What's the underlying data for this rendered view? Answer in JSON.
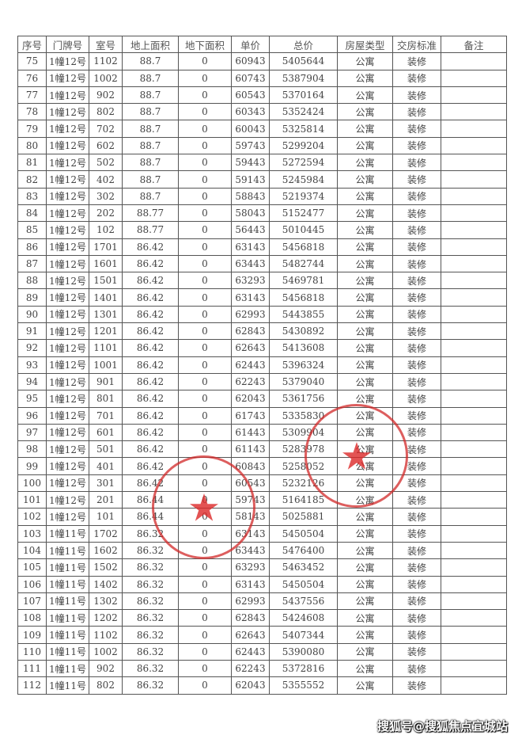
{
  "headers": [
    "序号",
    "门牌号",
    "室号",
    "地上面积",
    "地下面积",
    "单价",
    "总价",
    "房屋类型",
    "交房标准",
    "备注"
  ],
  "rows": [
    [
      "75",
      "1幢12号",
      "1102",
      "88.7",
      "0",
      "60943",
      "5405644",
      "公寓",
      "装修",
      ""
    ],
    [
      "76",
      "1幢12号",
      "1002",
      "88.7",
      "0",
      "60743",
      "5387904",
      "公寓",
      "装修",
      ""
    ],
    [
      "77",
      "1幢12号",
      "902",
      "88.7",
      "0",
      "60543",
      "5370164",
      "公寓",
      "装修",
      ""
    ],
    [
      "78",
      "1幢12号",
      "802",
      "88.7",
      "0",
      "60343",
      "5352424",
      "公寓",
      "装修",
      ""
    ],
    [
      "79",
      "1幢12号",
      "702",
      "88.7",
      "0",
      "60043",
      "5325814",
      "公寓",
      "装修",
      ""
    ],
    [
      "80",
      "1幢12号",
      "602",
      "88.7",
      "0",
      "59743",
      "5299204",
      "公寓",
      "装修",
      ""
    ],
    [
      "81",
      "1幢12号",
      "502",
      "88.7",
      "0",
      "59443",
      "5272594",
      "公寓",
      "装修",
      ""
    ],
    [
      "82",
      "1幢12号",
      "402",
      "88.7",
      "0",
      "59143",
      "5245984",
      "公寓",
      "装修",
      ""
    ],
    [
      "83",
      "1幢12号",
      "302",
      "88.7",
      "0",
      "58843",
      "5219374",
      "公寓",
      "装修",
      ""
    ],
    [
      "84",
      "1幢12号",
      "202",
      "88.77",
      "0",
      "58043",
      "5152477",
      "公寓",
      "装修",
      ""
    ],
    [
      "85",
      "1幢12号",
      "102",
      "88.77",
      "0",
      "56443",
      "5010445",
      "公寓",
      "装修",
      ""
    ],
    [
      "86",
      "1幢12号",
      "1701",
      "86.42",
      "0",
      "63143",
      "5456818",
      "公寓",
      "装修",
      ""
    ],
    [
      "87",
      "1幢12号",
      "1601",
      "86.42",
      "0",
      "63443",
      "5482744",
      "公寓",
      "装修",
      ""
    ],
    [
      "88",
      "1幢12号",
      "1501",
      "86.42",
      "0",
      "63293",
      "5469781",
      "公寓",
      "装修",
      ""
    ],
    [
      "89",
      "1幢12号",
      "1401",
      "86.42",
      "0",
      "63143",
      "5456818",
      "公寓",
      "装修",
      ""
    ],
    [
      "90",
      "1幢12号",
      "1301",
      "86.42",
      "0",
      "62993",
      "5443855",
      "公寓",
      "装修",
      ""
    ],
    [
      "91",
      "1幢12号",
      "1201",
      "86.42",
      "0",
      "62843",
      "5430892",
      "公寓",
      "装修",
      ""
    ],
    [
      "92",
      "1幢12号",
      "1101",
      "86.42",
      "0",
      "62643",
      "5413608",
      "公寓",
      "装修",
      ""
    ],
    [
      "93",
      "1幢12号",
      "1001",
      "86.42",
      "0",
      "62443",
      "5396324",
      "公寓",
      "装修",
      ""
    ],
    [
      "94",
      "1幢12号",
      "901",
      "86.42",
      "0",
      "62243",
      "5379040",
      "公寓",
      "装修",
      ""
    ],
    [
      "95",
      "1幢12号",
      "801",
      "86.42",
      "0",
      "62043",
      "5361756",
      "公寓",
      "装修",
      ""
    ],
    [
      "96",
      "1幢12号",
      "701",
      "86.42",
      "0",
      "61743",
      "5335830",
      "公寓",
      "装修",
      ""
    ],
    [
      "97",
      "1幢12号",
      "601",
      "86.42",
      "0",
      "61443",
      "5309904",
      "公寓",
      "装修",
      ""
    ],
    [
      "98",
      "1幢12号",
      "501",
      "86.42",
      "0",
      "61143",
      "5283978",
      "公寓",
      "装修",
      ""
    ],
    [
      "99",
      "1幢12号",
      "401",
      "86.42",
      "0",
      "60843",
      "5258052",
      "公寓",
      "装修",
      ""
    ],
    [
      "100",
      "1幢12号",
      "301",
      "86.42",
      "0",
      "60543",
      "5232126",
      "公寓",
      "装修",
      ""
    ],
    [
      "101",
      "1幢12号",
      "201",
      "86.44",
      "0",
      "59743",
      "5164185",
      "公寓",
      "装修",
      ""
    ],
    [
      "102",
      "1幢12号",
      "101",
      "86.44",
      "0",
      "58143",
      "5025881",
      "公寓",
      "装修",
      ""
    ],
    [
      "103",
      "1幢11号",
      "1702",
      "86.32",
      "0",
      "63143",
      "5450504",
      "公寓",
      "装修",
      ""
    ],
    [
      "104",
      "1幢11号",
      "1602",
      "86.32",
      "0",
      "63443",
      "5476400",
      "公寓",
      "装修",
      ""
    ],
    [
      "105",
      "1幢11号",
      "1502",
      "86.32",
      "0",
      "63293",
      "5463452",
      "公寓",
      "装修",
      ""
    ],
    [
      "106",
      "1幢11号",
      "1402",
      "86.32",
      "0",
      "63143",
      "5450504",
      "公寓",
      "装修",
      ""
    ],
    [
      "107",
      "1幢11号",
      "1302",
      "86.32",
      "0",
      "62993",
      "5437556",
      "公寓",
      "装修",
      ""
    ],
    [
      "108",
      "1幢11号",
      "1202",
      "86.32",
      "0",
      "62843",
      "5424608",
      "公寓",
      "装修",
      ""
    ],
    [
      "109",
      "1幢11号",
      "1102",
      "86.32",
      "0",
      "62643",
      "5407344",
      "公寓",
      "装修",
      ""
    ],
    [
      "110",
      "1幢11号",
      "1002",
      "86.32",
      "0",
      "62443",
      "5390080",
      "公寓",
      "装修",
      ""
    ],
    [
      "111",
      "1幢11号",
      "902",
      "86.32",
      "0",
      "62243",
      "5372816",
      "公寓",
      "装修",
      ""
    ],
    [
      "112",
      "1幢11号",
      "802",
      "86.32",
      "0",
      "62043",
      "5355552",
      "公寓",
      "装修",
      ""
    ]
  ],
  "watermark": "搜狐号@搜狐焦点宜城站",
  "stamp_color": "#d22828"
}
